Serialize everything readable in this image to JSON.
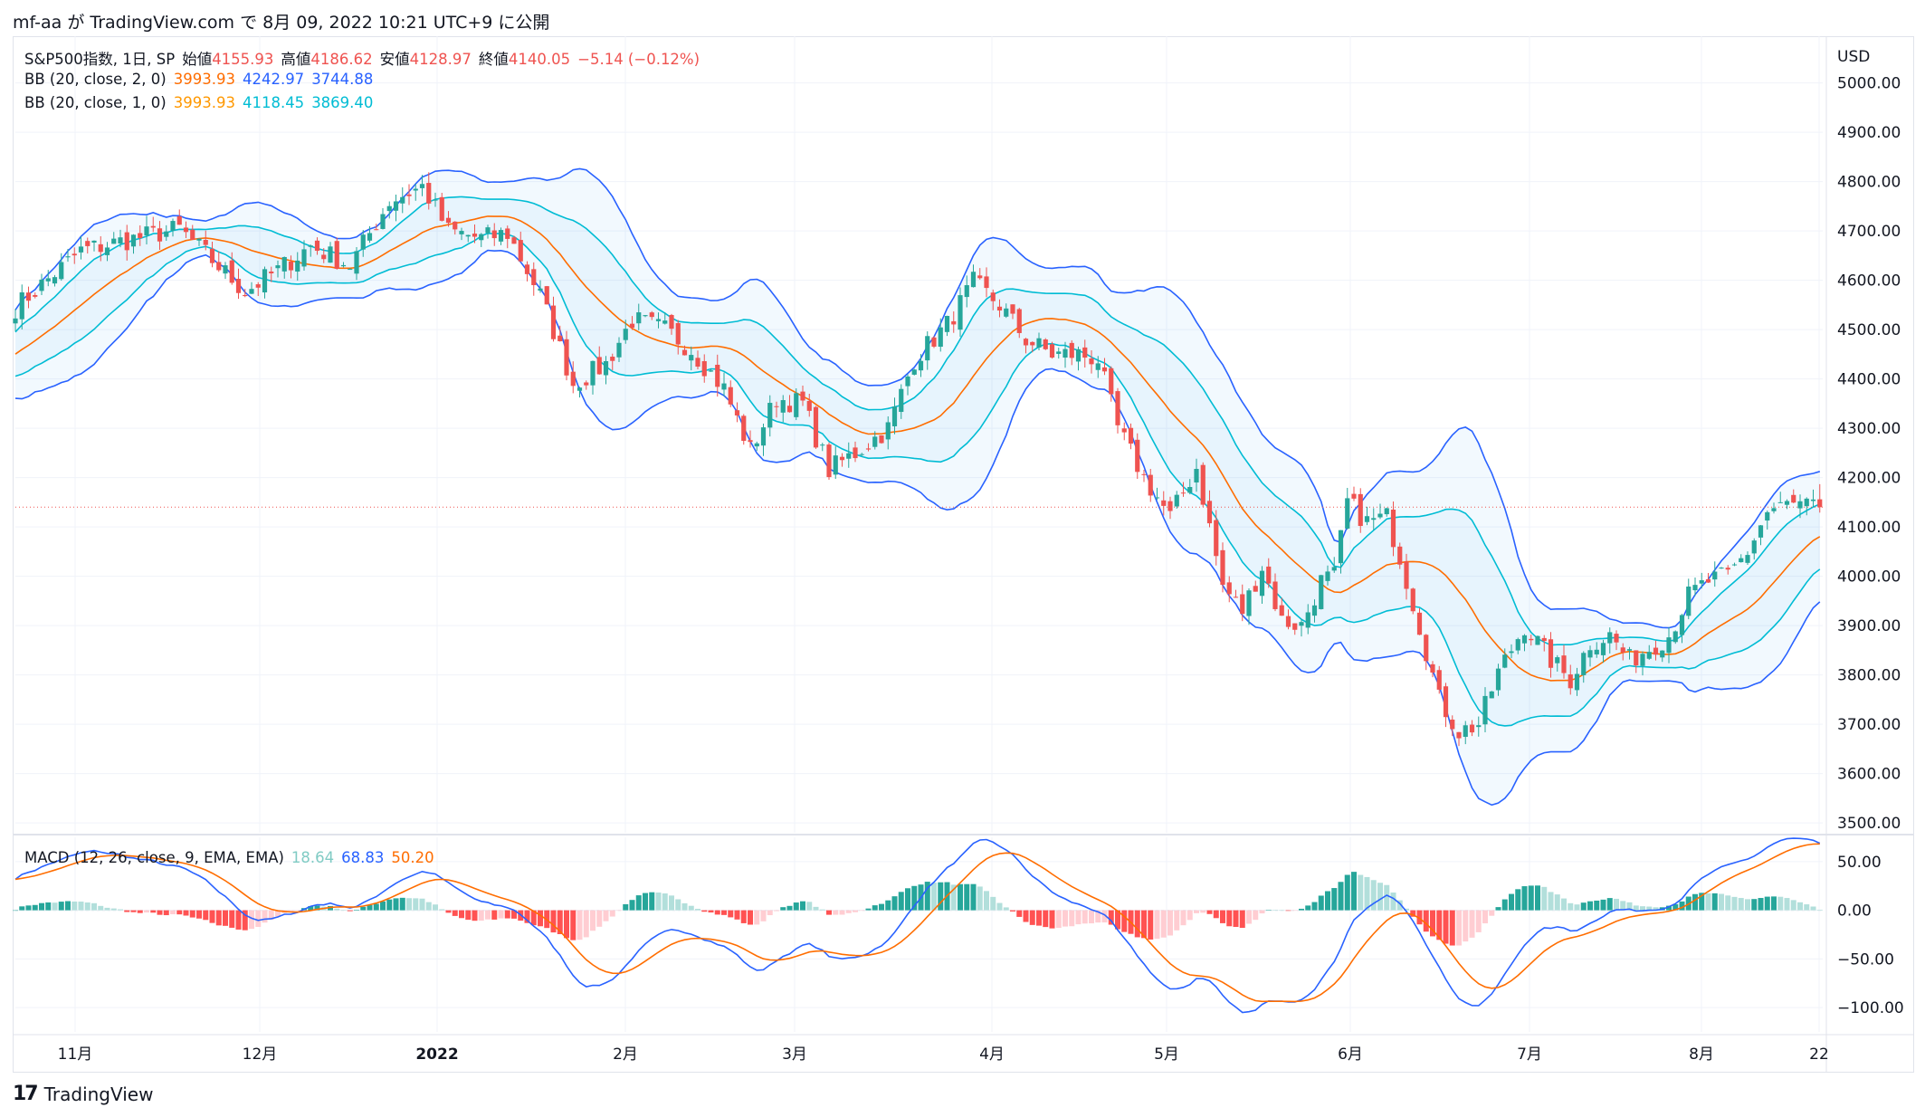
{
  "header": {
    "publish_text": "mf-aa が TradingView.com で 8月 09, 2022 10:21 UTC+9 に公開"
  },
  "symbol_legend": {
    "name": "S&P500指数, 1日, SP",
    "open_label": "始値",
    "open": "4155.93",
    "high_label": "高値",
    "high": "4186.62",
    "low_label": "安値",
    "low": "4128.97",
    "close_label": "終値",
    "close": "4140.05",
    "change": "−5.14 (−0.12%)"
  },
  "bb2_legend": {
    "label": "BB (20, close, 2, 0)",
    "basis": "3993.93",
    "upper": "4242.97",
    "lower": "3744.88"
  },
  "bb1_legend": {
    "label": "BB (20, close, 1, 0)",
    "basis": "3993.93",
    "upper": "4118.45",
    "lower": "3869.40"
  },
  "macd_legend": {
    "label": "MACD (12, 26, close, 9, EMA, EMA)",
    "hist": "18.64",
    "macd": "68.83",
    "signal": "50.20"
  },
  "footer": {
    "brand": "TradingView"
  },
  "colors": {
    "up": "#26a69a",
    "down": "#ef5350",
    "bb_outer": "#2962ff",
    "bb_inner": "#00bcd4",
    "basis": "#ff6d00",
    "band_fill": "#2196f3",
    "macd": "#2962ff",
    "signal": "#ff6d00",
    "hist_up_strong": "#26a69a",
    "hist_up_weak": "#b2dfdb",
    "hist_down_strong": "#ff5252",
    "hist_down_weak": "#ffcdd2"
  },
  "chart_data": {
    "type": "candlestick",
    "title": "S&P500指数, 1日, SP",
    "currency": "USD",
    "ylim": [
      3480,
      5080
    ],
    "yticks": [
      3500,
      3600,
      3700,
      3800,
      3900,
      4000,
      4100,
      4200,
      4300,
      4400,
      4500,
      4600,
      4700,
      4800,
      4900,
      5000
    ],
    "x_labels": [
      "11月",
      "12月",
      "2022",
      "2月",
      "3月",
      "4月",
      "5月",
      "6月",
      "7月",
      "8月",
      "22"
    ],
    "last_close": 4140.05,
    "anchors": [
      [
        0,
        4545
      ],
      [
        10,
        4660
      ],
      [
        20,
        4690
      ],
      [
        25,
        4704
      ],
      [
        35,
        4577
      ],
      [
        40,
        4620
      ],
      [
        45,
        4670
      ],
      [
        51,
        4630
      ],
      [
        57,
        4760
      ],
      [
        62,
        4790
      ],
      [
        66,
        4700
      ],
      [
        71,
        4685
      ],
      [
        75,
        4695
      ],
      [
        80,
        4570
      ],
      [
        85,
        4390
      ],
      [
        90,
        4430
      ],
      [
        94,
        4520
      ],
      [
        99,
        4500
      ],
      [
        103,
        4460
      ],
      [
        108,
        4380
      ],
      [
        112,
        4255
      ],
      [
        116,
        4360
      ],
      [
        120,
        4350
      ],
      [
        124,
        4215
      ],
      [
        128,
        4250
      ],
      [
        133,
        4300
      ],
      [
        137,
        4440
      ],
      [
        142,
        4510
      ],
      [
        146,
        4595
      ],
      [
        150,
        4550
      ],
      [
        154,
        4480
      ],
      [
        158,
        4450
      ],
      [
        162,
        4450
      ],
      [
        165,
        4440
      ],
      [
        168,
        4300
      ],
      [
        172,
        4200
      ],
      [
        176,
        4120
      ],
      [
        180,
        4220
      ],
      [
        184,
        3980
      ],
      [
        187,
        3930
      ],
      [
        190,
        4020
      ],
      [
        193,
        3910
      ],
      [
        196,
        3900
      ],
      [
        199,
        3990
      ],
      [
        201,
        4000
      ],
      [
        203,
        4150
      ],
      [
        206,
        4110
      ],
      [
        209,
        4120
      ],
      [
        211,
        4040
      ],
      [
        214,
        3900
      ],
      [
        217,
        3750
      ],
      [
        220,
        3685
      ],
      [
        223,
        3700
      ],
      [
        226,
        3805
      ],
      [
        230,
        3900
      ],
      [
        234,
        3830
      ],
      [
        237,
        3790
      ],
      [
        240,
        3865
      ],
      [
        243,
        3880
      ],
      [
        246,
        3830
      ],
      [
        249,
        3855
      ],
      [
        252,
        3880
      ],
      [
        255,
        3960
      ],
      [
        258,
        3990
      ],
      [
        261,
        4000
      ],
      [
        264,
        4050
      ],
      [
        267,
        4130
      ],
      [
        270,
        4145
      ],
      [
        273,
        4140
      ],
      [
        275,
        4140
      ]
    ],
    "indicators": {
      "bollinger_2": {
        "period": 20,
        "mult": 2,
        "basis": 3993.93,
        "upper": 4242.97,
        "lower": 3744.88
      },
      "bollinger_1": {
        "period": 20,
        "mult": 1,
        "basis": 3993.93,
        "upper": 4118.45,
        "lower": 3869.4
      }
    },
    "macd": {
      "params": "12, 26, close, 9, EMA, EMA",
      "ylim": [
        -125,
        75
      ],
      "yticks": [
        50,
        0,
        -50,
        -100
      ],
      "last_histogram": 18.64,
      "last_macd": 68.83,
      "last_signal": 50.2
    }
  }
}
